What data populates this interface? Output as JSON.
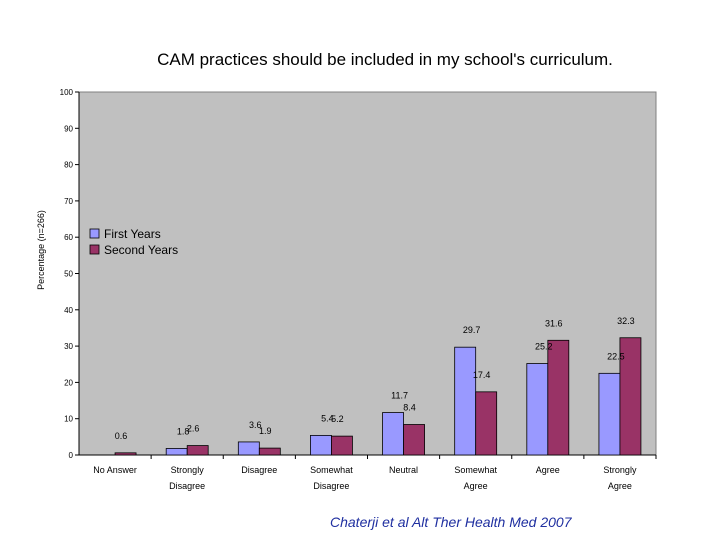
{
  "chart_data": {
    "type": "bar",
    "title": "CAM practices should be included in my school's curriculum.",
    "ylabel": "Percentage (n=266)",
    "xlabel": "",
    "ylim": [
      0,
      100
    ],
    "yticks": [
      0,
      10,
      20,
      30,
      40,
      50,
      60,
      70,
      80,
      90,
      100
    ],
    "grid": false,
    "legend_position": "left",
    "categories": [
      [
        "No Answer"
      ],
      [
        "Strongly",
        "Disagree"
      ],
      [
        "Disagree"
      ],
      [
        "Somewhat",
        "Disagree"
      ],
      [
        "Neutral"
      ],
      [
        "Somewhat",
        "Agree"
      ],
      [
        "Agree"
      ],
      [
        "Strongly",
        "Agree"
      ]
    ],
    "series": [
      {
        "name": "First Years",
        "color": "#9999ff",
        "values": [
          null,
          1.8,
          3.6,
          5.4,
          11.7,
          29.7,
          25.2,
          22.5
        ]
      },
      {
        "name": "Second Years",
        "color": "#993366",
        "values": [
          0.6,
          2.6,
          1.9,
          5.2,
          8.4,
          17.4,
          31.6,
          32.3
        ]
      }
    ],
    "plot_background": "#c0c0c0"
  },
  "citation": "Chaterji et al Alt Ther Health Med 2007"
}
